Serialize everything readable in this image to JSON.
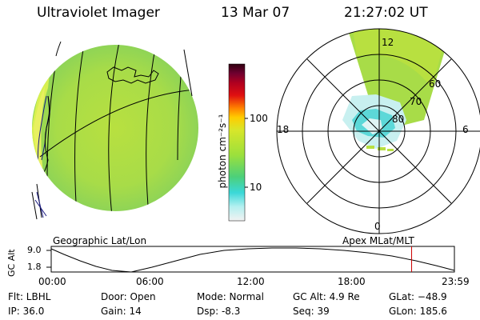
{
  "header": {
    "instrument": "Ultraviolet Imager",
    "date": "13 Mar 07",
    "time": "21:27:02 UT"
  },
  "colorbar": {
    "unit_label": "photon cm⁻²s⁻¹",
    "ticks": [
      "100",
      "10"
    ],
    "stops": [
      "#f2f2f2",
      "#b4f0f0",
      "#3ad8d8",
      "#4cd07a",
      "#9ce03c",
      "#d8e62a",
      "#ffcc00",
      "#ff8000",
      "#e01010",
      "#b00020",
      "#700030",
      "#300010"
    ]
  },
  "labels": {
    "left_panel": "Geographic Lat/Lon",
    "right_panel": "Apex MLat/MLT"
  },
  "polar": {
    "mlt_labels": [
      "12",
      "18",
      "6",
      "0"
    ],
    "lat_labels": [
      "60",
      "70",
      "80"
    ]
  },
  "altitude_plot": {
    "ylabel": "GC Alt",
    "yticks": [
      "9.0",
      "1.8"
    ],
    "xticks": [
      "00:00",
      "06:00",
      "12:00",
      "18:00",
      "23:59"
    ],
    "current_time_fraction": 0.8939
  },
  "info": {
    "flt": "Flt: LBHL",
    "ip": "IP: 36.0",
    "door": "Door: Open",
    "gain": "Gain: 14",
    "mode": "Mode: Normal",
    "dsp": "Dsp:    -8.3",
    "gcalt": "GC Alt: 4.9 Re",
    "seq": "Seq: 39",
    "glat": "GLat: −48.9",
    "glon": "GLon: 185.6"
  }
}
